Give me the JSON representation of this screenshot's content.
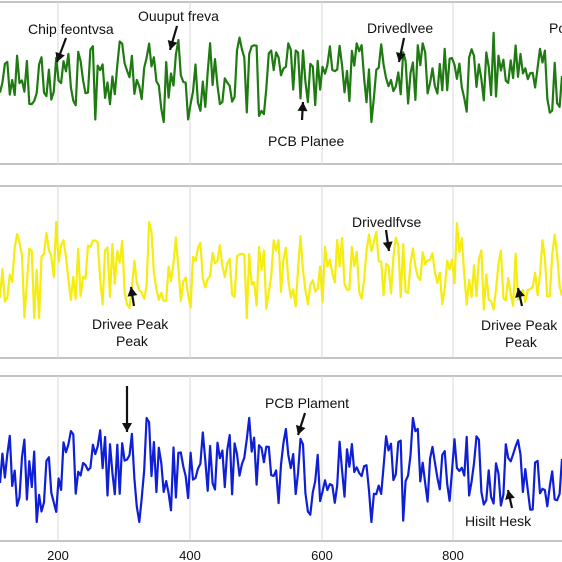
{
  "chart_data": [
    {
      "type": "line",
      "panel": "top",
      "color": "#1f7a12",
      "x_range": [
        120,
        940
      ],
      "y_range": [
        -1,
        1
      ],
      "grid": true,
      "annotations": [
        {
          "text": "Chip feontvsa",
          "x": 130
        },
        {
          "text": "Ouuput freva",
          "x": 375
        },
        {
          "text": "Drivedlvee",
          "x": 755
        },
        {
          "text": "Po",
          "x": 935
        },
        {
          "text": "PCB Planee",
          "x": 565
        }
      ]
    },
    {
      "type": "line",
      "panel": "middle",
      "color": "#f5ec10",
      "x_range": [
        120,
        940
      ],
      "y_range": [
        -1,
        1
      ],
      "grid": true,
      "annotations": [
        {
          "text": "Drivedlfvse",
          "x": 695
        },
        {
          "text": "Drivee Peak",
          "x": 230
        },
        {
          "text": "Peak",
          "x": 230
        },
        {
          "text": "Drivee Peak",
          "x": 915
        },
        {
          "text": "Peak",
          "x": 915
        }
      ]
    },
    {
      "type": "line",
      "panel": "bottom",
      "color": "#0f1fd6",
      "x_range": [
        120,
        940
      ],
      "y_range": [
        -1,
        1
      ],
      "grid": true,
      "xticks": [
        200,
        400,
        600,
        800
      ],
      "annotations": [
        {
          "text": "PCB Plament",
          "x": 560
        },
        {
          "text": "Hisilt Hesk",
          "x": 880
        }
      ]
    }
  ]
}
